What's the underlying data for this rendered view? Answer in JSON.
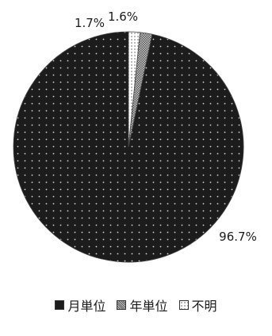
{
  "chart_data": {
    "type": "pie",
    "categories": [
      "月単位",
      "年単位",
      "不明"
    ],
    "values": [
      96.7,
      1.7,
      1.6
    ],
    "value_labels": [
      "96.7%",
      "1.7%",
      "1.6%"
    ],
    "colors": [
      "#1c1c1c",
      "#8c8c8c",
      "#f4f4f4"
    ],
    "patterns": [
      "dots",
      "grid",
      "dots"
    ],
    "legend_position": "bottom",
    "start_angle": "top",
    "direction": "counterclockwise"
  }
}
